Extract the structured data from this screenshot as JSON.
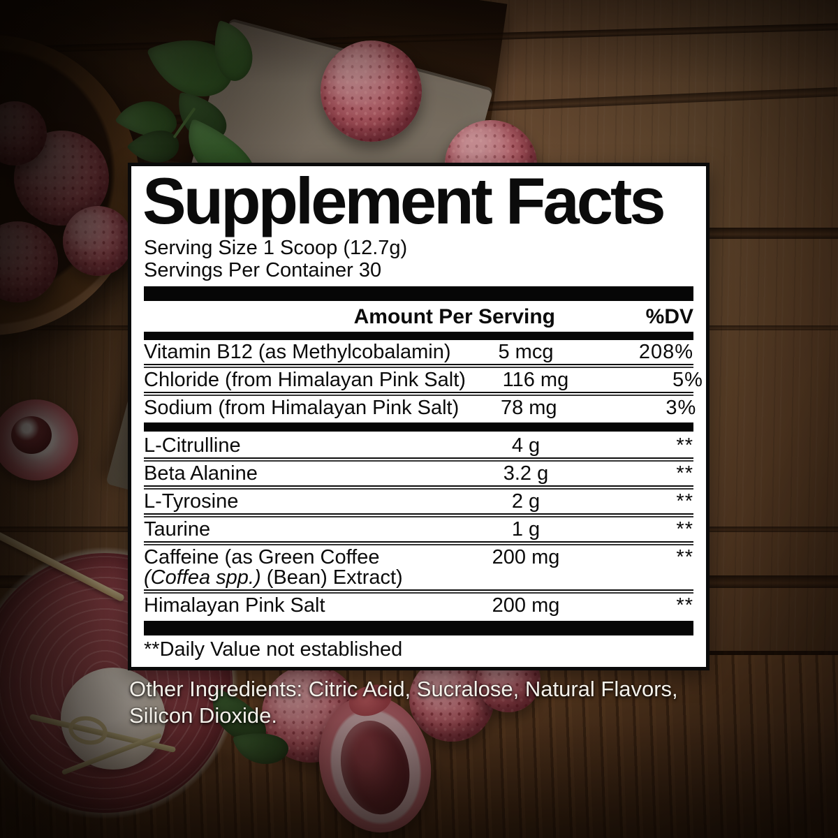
{
  "label": {
    "title": "Supplement Facts",
    "serving_size": "Serving Size 1 Scoop (12.7g)",
    "servings_per_container": "Servings Per Container 30",
    "columns": {
      "amount": "Amount Per Serving",
      "dv": "%DV"
    },
    "nutrients": [
      {
        "name": "Vitamin B12 (as Methylcobalamin)",
        "amount": "5 mcg",
        "dv": "208%"
      },
      {
        "name": "Chloride (from Himalayan Pink Salt)",
        "amount": "116 mg",
        "dv": "5%"
      },
      {
        "name": "Sodium (from Himalayan Pink Salt)",
        "amount": "78 mg",
        "dv": "3%"
      }
    ],
    "actives": [
      {
        "name": "L-Citrulline",
        "amount": "4 g",
        "dv": "**"
      },
      {
        "name": "Beta Alanine",
        "amount": "3.2 g",
        "dv": "**"
      },
      {
        "name": "L-Tyrosine",
        "amount": "2 g",
        "dv": "**"
      },
      {
        "name": "Taurine",
        "amount": "1 g",
        "dv": "**"
      },
      {
        "name_line1": "Caffeine (as Green Coffee",
        "name_line2_italic": "(Coffea spp.)",
        "name_line2_post": " (Bean) Extract)",
        "amount": "200 mg",
        "dv": "**"
      },
      {
        "name": "Himalayan Pink Salt",
        "amount": "200 mg",
        "dv": "**"
      }
    ],
    "footnote": "**Daily Value not established"
  },
  "other_ingredients": "Other Ingredients: Citric Acid, Sucralose, Natural Flavors, Silicon Dioxide.",
  "colors": {
    "panel_bg": "#ffffff",
    "panel_border": "#0a0a0a",
    "text": "#0b0b0b",
    "other_ingredients_text": "#f4f1ea",
    "wood_brown": "#77563a",
    "lychee_pink": "#bd5c68",
    "mint_green": "#3a7031",
    "drink_red": "#8a3741",
    "slate_gray": "#837a6b"
  }
}
